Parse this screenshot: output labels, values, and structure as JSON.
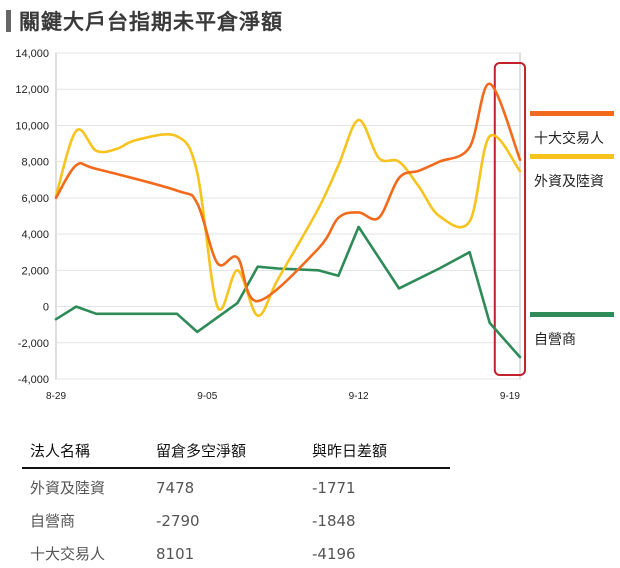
{
  "title": "關鍵大戶台指期未平倉淨額",
  "chart_data": {
    "type": "line",
    "x": [
      0,
      1,
      2,
      3,
      4,
      5,
      6,
      7,
      8,
      9,
      10,
      11,
      12,
      13,
      14,
      15,
      16,
      17,
      18,
      19,
      20,
      21,
      22,
      23,
      24,
      25,
      26,
      27,
      28,
      29,
      30,
      31,
      32,
      33,
      34,
      35,
      36,
      37,
      38,
      39,
      40,
      41,
      42,
      43,
      44,
      45,
      46
    ],
    "xticks": [
      {
        "x": 0,
        "label": "8-29"
      },
      {
        "x": 15,
        "label": "9-05"
      },
      {
        "x": 30,
        "label": "9-12"
      },
      {
        "x": 45,
        "label": "9-19"
      }
    ],
    "ylim": [
      -4000,
      14000
    ],
    "yticks": [
      -4000,
      -2000,
      0,
      2000,
      4000,
      6000,
      8000,
      10000,
      12000,
      14000
    ],
    "ytick_labels": [
      "-4,000",
      "-2,000",
      "0",
      "2,000",
      "4,000",
      "6,000",
      "8,000",
      "10,000",
      "12,000",
      "14,000"
    ],
    "grid": true,
    "legend_position": "right",
    "highlight_x_range": [
      43.5,
      46.5
    ],
    "series": [
      {
        "name": "十大交易人",
        "color": "#f26a1b",
        "smooth": true,
        "points": [
          [
            0,
            6000
          ],
          [
            2,
            7800
          ],
          [
            4,
            7600
          ],
          [
            12,
            6400
          ],
          [
            14,
            5700
          ],
          [
            16,
            2400
          ],
          [
            18,
            2700
          ],
          [
            20,
            300
          ],
          [
            26,
            3200
          ],
          [
            28,
            4900
          ],
          [
            30,
            5200
          ],
          [
            32,
            4900
          ],
          [
            34,
            7100
          ],
          [
            36,
            7500
          ],
          [
            38,
            8000
          ],
          [
            41,
            8800
          ],
          [
            43,
            12300
          ],
          [
            46,
            8101
          ]
        ]
      },
      {
        "name": "外資及陸資",
        "color": "#f7c31c",
        "smooth": true,
        "points": [
          [
            0,
            6100
          ],
          [
            2,
            9700
          ],
          [
            4,
            8600
          ],
          [
            6,
            8700
          ],
          [
            8,
            9200
          ],
          [
            12,
            9400
          ],
          [
            14,
            7400
          ],
          [
            16,
            0
          ],
          [
            18,
            2000
          ],
          [
            20,
            -500
          ],
          [
            22,
            1500
          ],
          [
            26,
            5400
          ],
          [
            28,
            7800
          ],
          [
            30,
            10300
          ],
          [
            32,
            8200
          ],
          [
            34,
            8000
          ],
          [
            36,
            6600
          ],
          [
            38,
            5000
          ],
          [
            41,
            4700
          ],
          [
            43,
            9400
          ],
          [
            46,
            7478
          ]
        ]
      },
      {
        "name": "自營商",
        "color": "#2e8b57",
        "smooth": false,
        "points": [
          [
            0,
            -700
          ],
          [
            2,
            0
          ],
          [
            4,
            -400
          ],
          [
            12,
            -400
          ],
          [
            14,
            -1400
          ],
          [
            16,
            -600
          ],
          [
            18,
            200
          ],
          [
            20,
            2200
          ],
          [
            22,
            2100
          ],
          [
            26,
            2000
          ],
          [
            28,
            1700
          ],
          [
            30,
            4400
          ],
          [
            34,
            1000
          ],
          [
            38,
            2100
          ],
          [
            41,
            3000
          ],
          [
            43,
            -900
          ],
          [
            46,
            -2790
          ]
        ]
      }
    ]
  },
  "summary_table": {
    "headers": [
      "法人名稱",
      "留倉多空淨額",
      "與昨日差額"
    ],
    "rows": [
      [
        "外資及陸資",
        "7478",
        "-1771"
      ],
      [
        "自營商",
        "-2790",
        "-1848"
      ],
      [
        "十大交易人",
        "8101",
        "-4196"
      ]
    ]
  }
}
